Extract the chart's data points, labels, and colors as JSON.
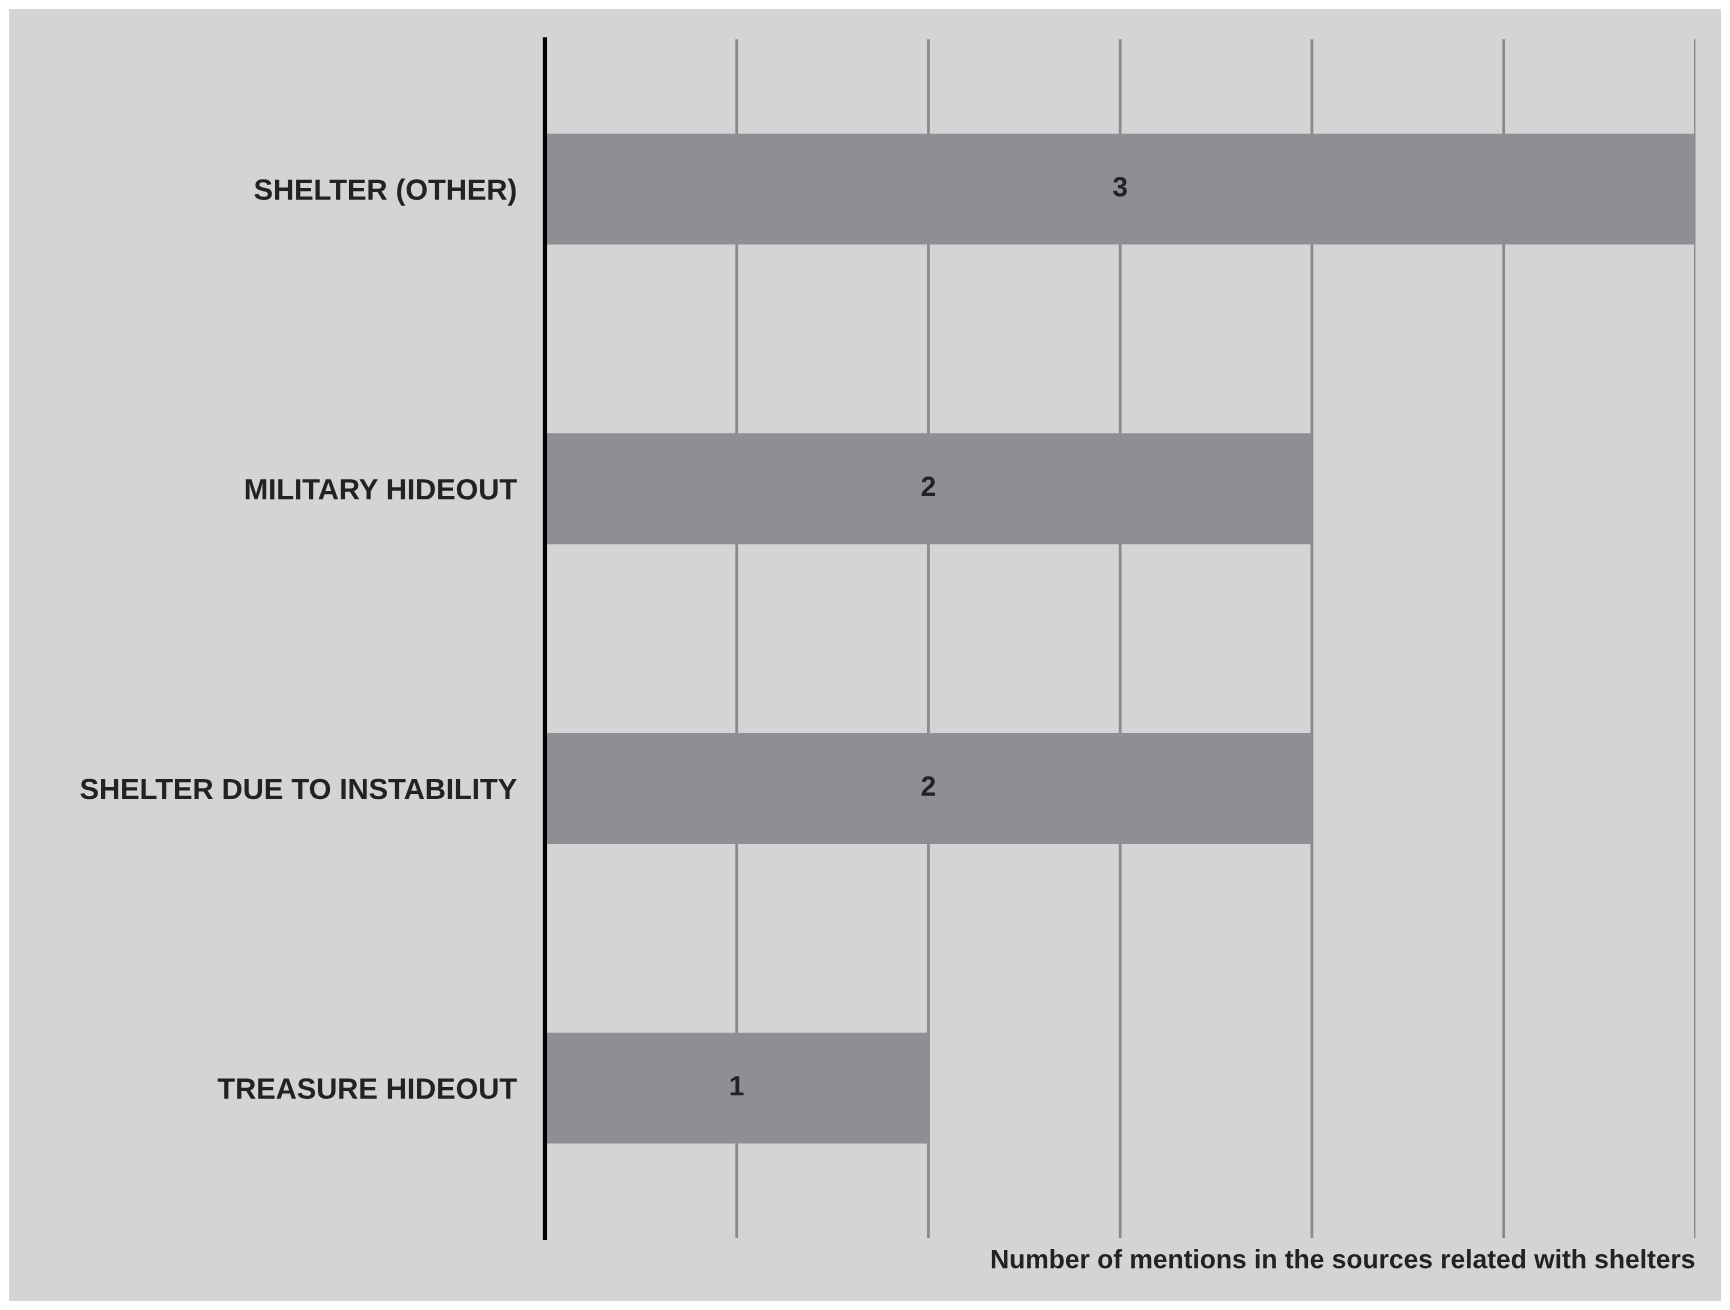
{
  "chart_data": {
    "type": "bar",
    "orientation": "horizontal",
    "categories": [
      "SHELTER (OTHER)",
      "MILITARY HIDEOUT",
      "SHELTER DUE TO INSTABILITY",
      "TREASURE HIDEOUT"
    ],
    "values": [
      3,
      2,
      2,
      1
    ],
    "color": "#8e8f93",
    "data_labels": true,
    "xlabel": "Number of mentions in the sources related with shelters",
    "xlim": [
      0,
      3
    ],
    "xticks": [
      {
        "value": 0,
        "label": null
      },
      {
        "value": 0.5,
        "label": null
      },
      {
        "value": 1,
        "label": null
      },
      {
        "value": 1.5,
        "label": null
      },
      {
        "value": 2,
        "label": null
      },
      {
        "value": 2.5,
        "label": null
      },
      {
        "value": 3,
        "label": null
      }
    ],
    "grid": "x",
    "tick_labels": "y",
    "legend": false
  }
}
